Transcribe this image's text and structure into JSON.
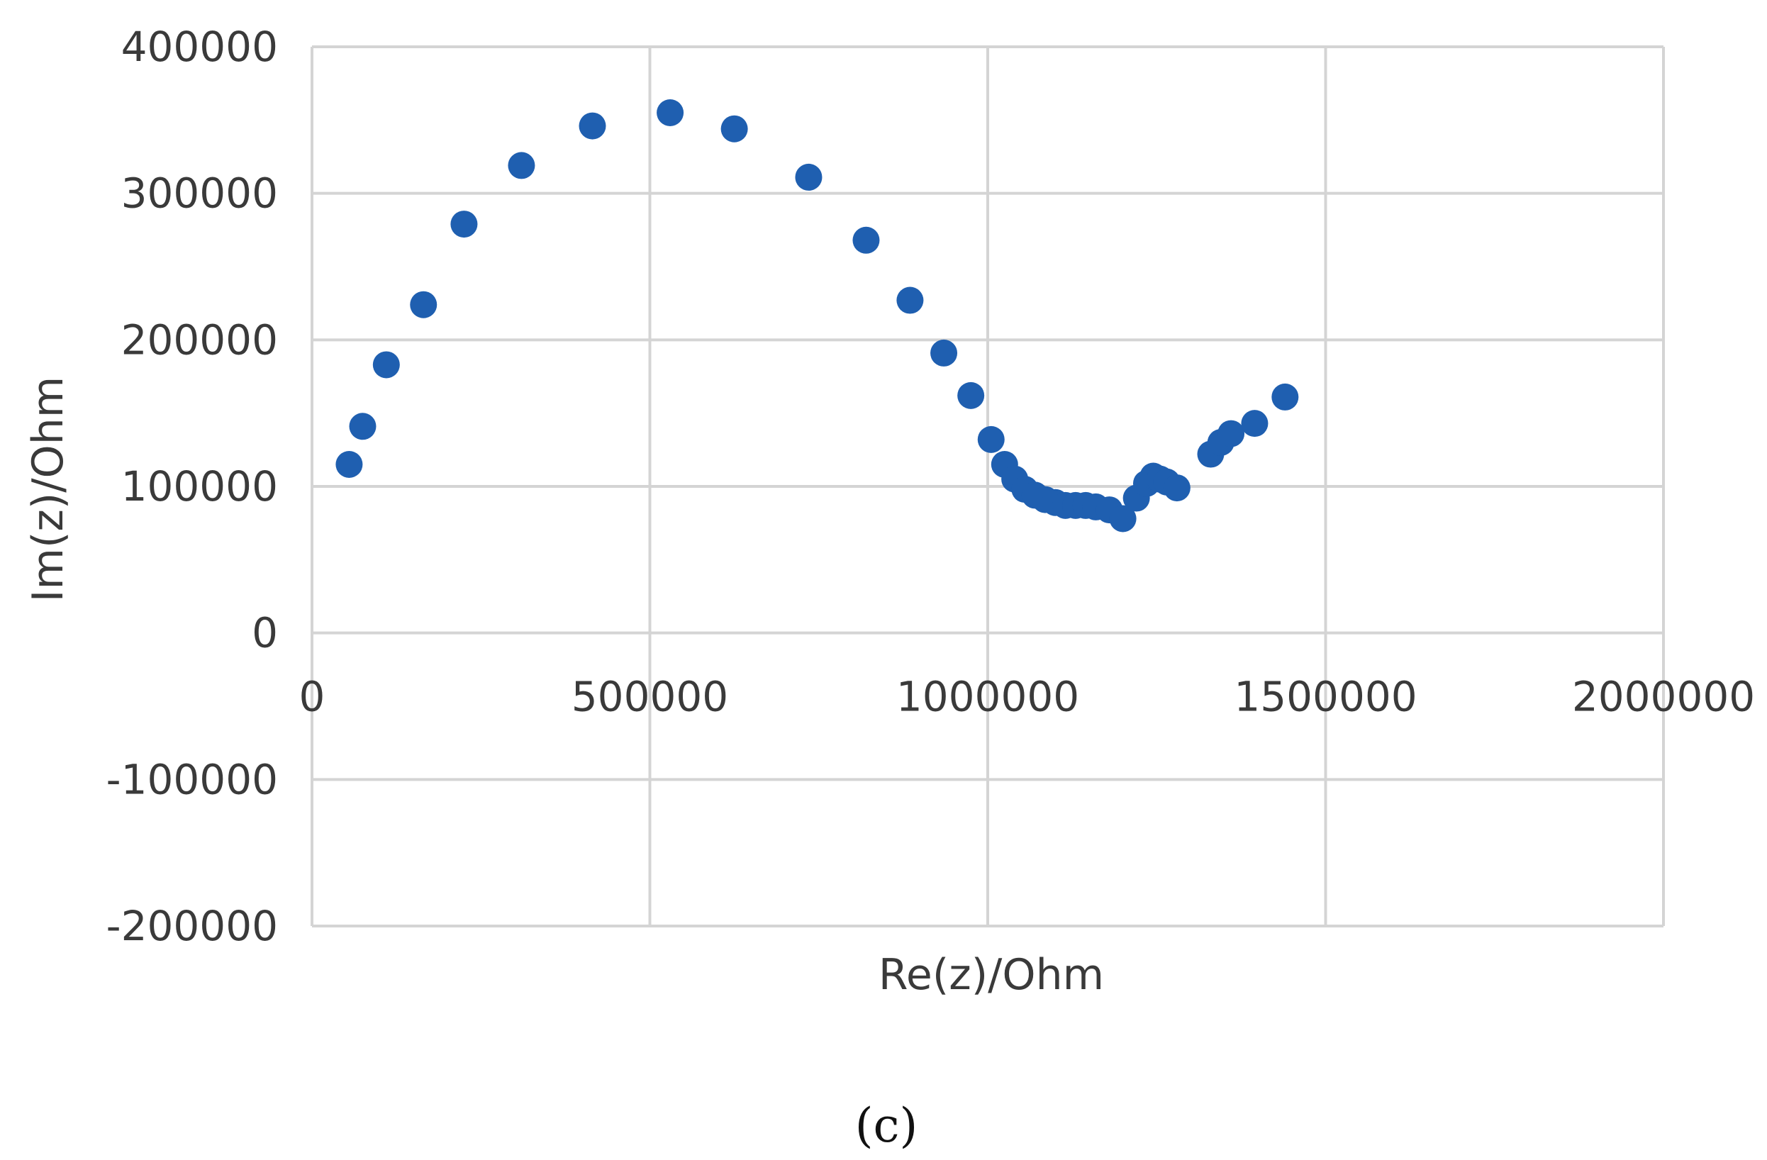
{
  "caption": "(c)",
  "chart_data": {
    "type": "scatter",
    "title": "",
    "xlabel": "Re(z)/Ohm",
    "ylabel": "Im(z)/Ohm",
    "xlim": [
      0,
      2000000
    ],
    "ylim": [
      -200000,
      400000
    ],
    "x_ticks": [
      "0",
      "500000",
      "1000000",
      "1500000",
      "2000000"
    ],
    "y_ticks": [
      "400000",
      "300000",
      "200000",
      "100000",
      "0",
      "-100000",
      "-200000"
    ],
    "x_tick_values": [
      0,
      500000,
      1000000,
      1500000,
      2000000
    ],
    "y_tick_values": [
      400000,
      300000,
      200000,
      100000,
      0,
      -100000,
      -200000
    ],
    "grid": true,
    "marker_color": "#1f5fb0",
    "series": [
      {
        "x": [
          55000,
          75000,
          110000,
          165000,
          225000,
          310000,
          415000,
          530000,
          625000,
          735000,
          820000,
          885000,
          935000,
          975000,
          1005000,
          1025000,
          1040000,
          1055000,
          1070000,
          1085000,
          1100000,
          1115000,
          1130000,
          1145000,
          1160000,
          1180000,
          1200000,
          1220000,
          1235000,
          1245000,
          1255000,
          1265000,
          1280000,
          1330000,
          1345000,
          1360000,
          1395000,
          1440000
        ],
        "y": [
          115000,
          141000,
          183000,
          224000,
          279000,
          319000,
          346000,
          355000,
          344000,
          311000,
          268000,
          227000,
          191000,
          162000,
          132000,
          115000,
          105000,
          98000,
          94000,
          91000,
          89000,
          87000,
          87000,
          87000,
          86000,
          84000,
          78000,
          92000,
          102000,
          107000,
          105000,
          103000,
          99000,
          122000,
          130000,
          136000,
          143000,
          161000
        ]
      }
    ]
  }
}
